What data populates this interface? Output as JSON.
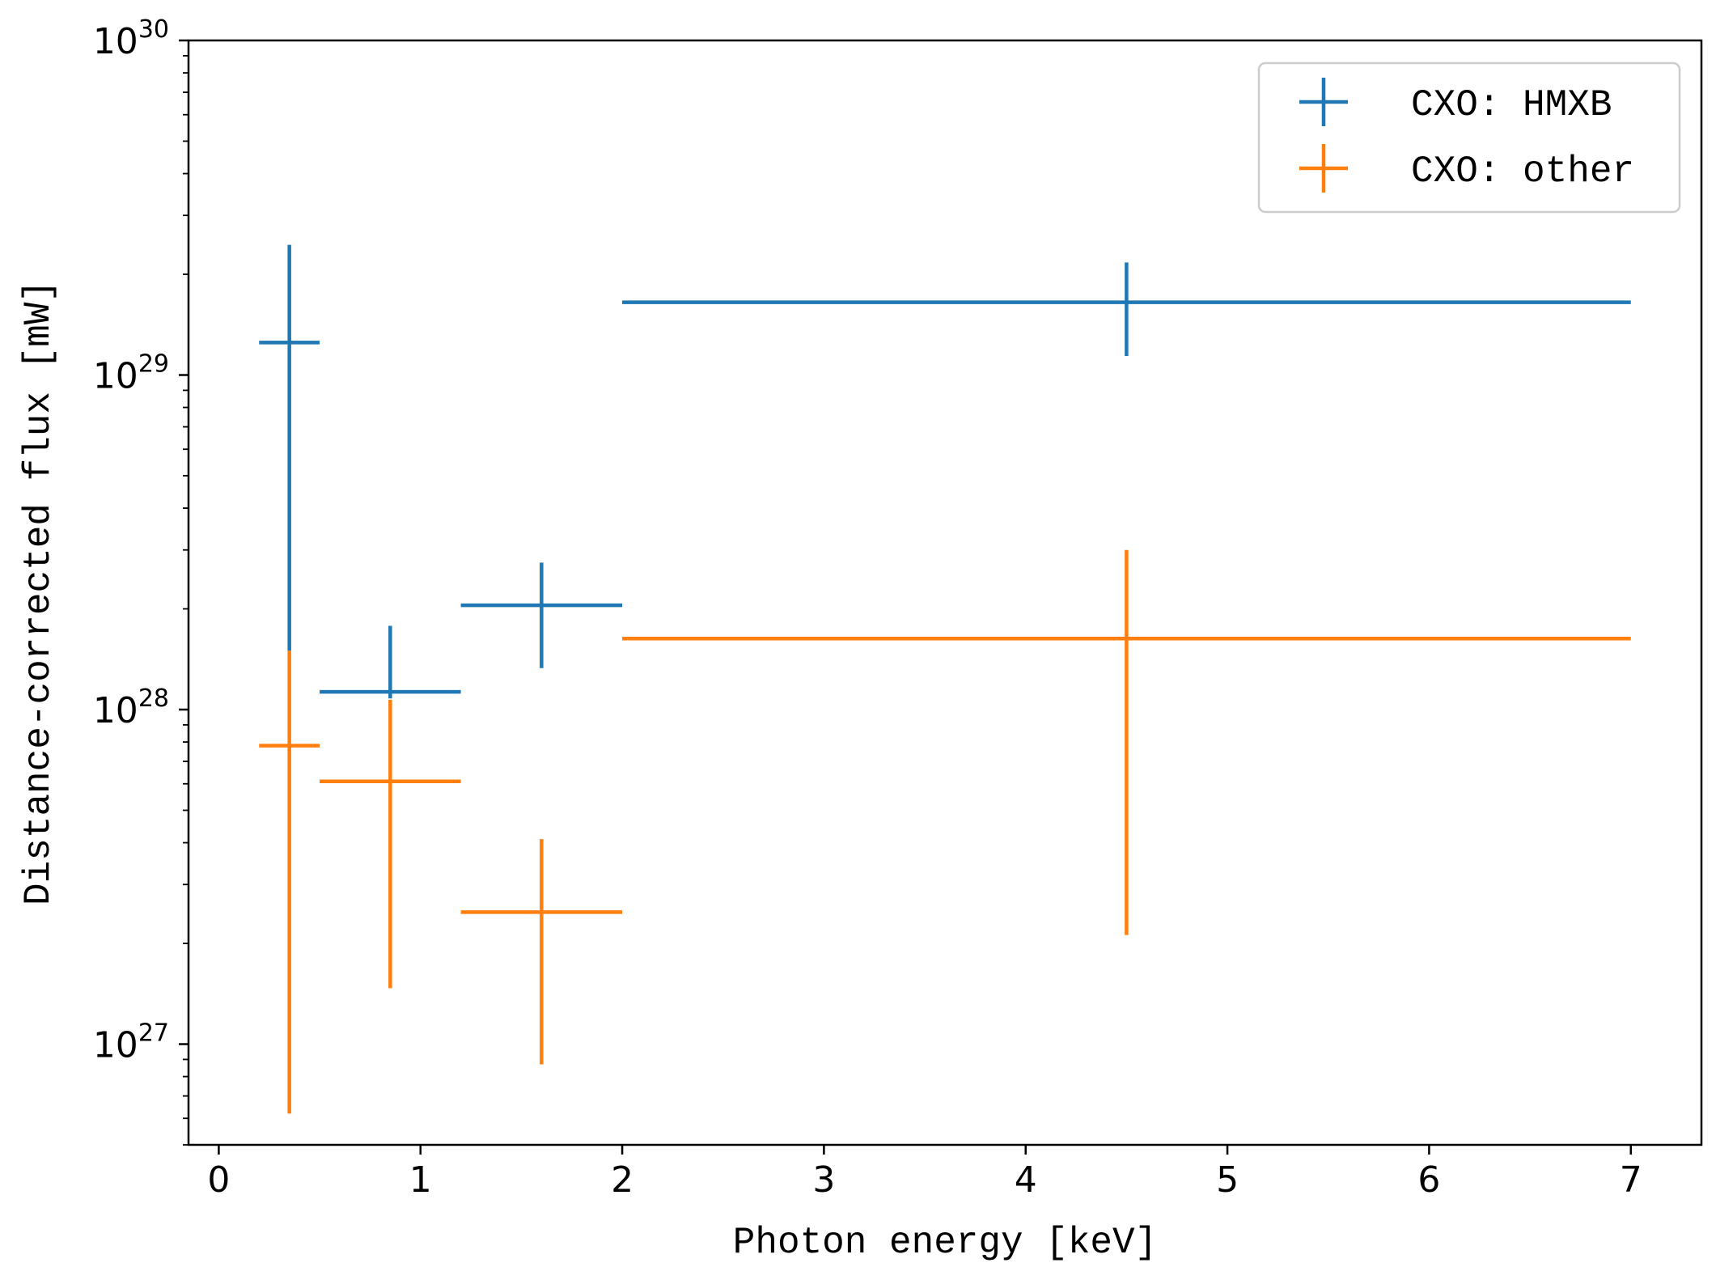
{
  "chart_data": {
    "type": "scatter",
    "xlabel": "Photon energy [keV]",
    "ylabel": "Distance-corrected flux [mW]",
    "xlim": [
      -0.15,
      7.35
    ],
    "ylim": [
      5e+26,
      1e+30
    ],
    "yscale": "log",
    "grid": false,
    "legend_position": "top-right",
    "x_ticks": [
      0,
      1,
      2,
      3,
      4,
      5,
      6,
      7
    ],
    "y_ticks": [
      {
        "value": 1e+27,
        "base": "10",
        "exp": "27"
      },
      {
        "value": 1e+28,
        "base": "10",
        "exp": "28"
      },
      {
        "value": 1e+29,
        "base": "10",
        "exp": "29"
      },
      {
        "value": 1e+30,
        "base": "10",
        "exp": "30"
      }
    ],
    "series": [
      {
        "name": "CXO: HMXB",
        "color": "#1f77b4",
        "points": [
          {
            "x": 0.35,
            "xmin": 0.2,
            "xmax": 0.5,
            "y": 1.25e+29,
            "ymin": 1.5e+28,
            "ymax": 2.45e+29
          },
          {
            "x": 0.85,
            "xmin": 0.5,
            "xmax": 1.2,
            "y": 1.13e+28,
            "ymin": 1.08e+28,
            "ymax": 1.78e+28
          },
          {
            "x": 1.6,
            "xmin": 1.2,
            "xmax": 2.0,
            "y": 2.05e+28,
            "ymin": 1.33e+28,
            "ymax": 2.75e+28
          },
          {
            "x": 4.5,
            "xmin": 2.0,
            "xmax": 7.0,
            "y": 1.65e+29,
            "ymin": 1.14e+29,
            "ymax": 2.17e+29
          }
        ]
      },
      {
        "name": "CXO: other",
        "color": "#ff7f0e",
        "points": [
          {
            "x": 0.35,
            "xmin": 0.2,
            "xmax": 0.5,
            "y": 7.8e+27,
            "ymin": 6.2e+26,
            "ymax": 1.5e+28
          },
          {
            "x": 0.85,
            "xmin": 0.5,
            "xmax": 1.2,
            "y": 6.1e+27,
            "ymin": 1.47e+27,
            "ymax": 1.07e+28
          },
          {
            "x": 1.6,
            "xmin": 1.2,
            "xmax": 2.0,
            "y": 2.48e+27,
            "ymin": 8.7e+26,
            "ymax": 4.1e+27
          },
          {
            "x": 4.5,
            "xmin": 2.0,
            "xmax": 7.0,
            "y": 1.63e+28,
            "ymin": 2.12e+27,
            "ymax": 3e+28
          }
        ]
      }
    ]
  }
}
